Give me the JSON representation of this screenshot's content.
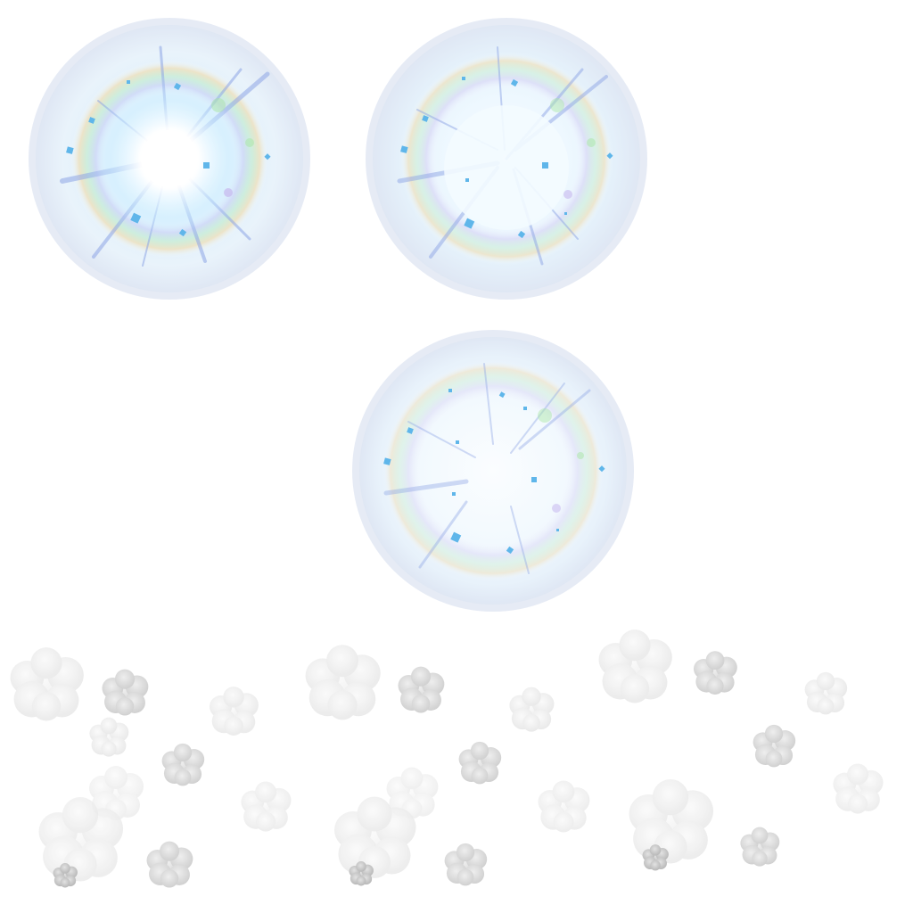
{
  "sprite_sheet": {
    "frames": [
      {
        "name": "burst-frame-1",
        "core_intensity": 1.0
      },
      {
        "name": "burst-frame-2",
        "core_intensity": 0.65
      },
      {
        "name": "burst-frame-3",
        "core_intensity": 0.35
      }
    ],
    "palette": {
      "ring_outer": "#e8eef8",
      "ring_inner": "#d6e6f6",
      "glow": "#cfe9fb",
      "core": "#ffffff",
      "spark": "#5fb6ea",
      "ray": "#8fa6e6",
      "rainbow_warm": "#f6d28a",
      "rainbow_green": "#a8e6a4",
      "rainbow_violet": "#c6b8ee",
      "smoke_light": "#f3f3f3",
      "smoke_mid": "#dedede",
      "smoke_dark": "#c7c7c7"
    },
    "smoke_puffs": {
      "count": 33
    }
  }
}
